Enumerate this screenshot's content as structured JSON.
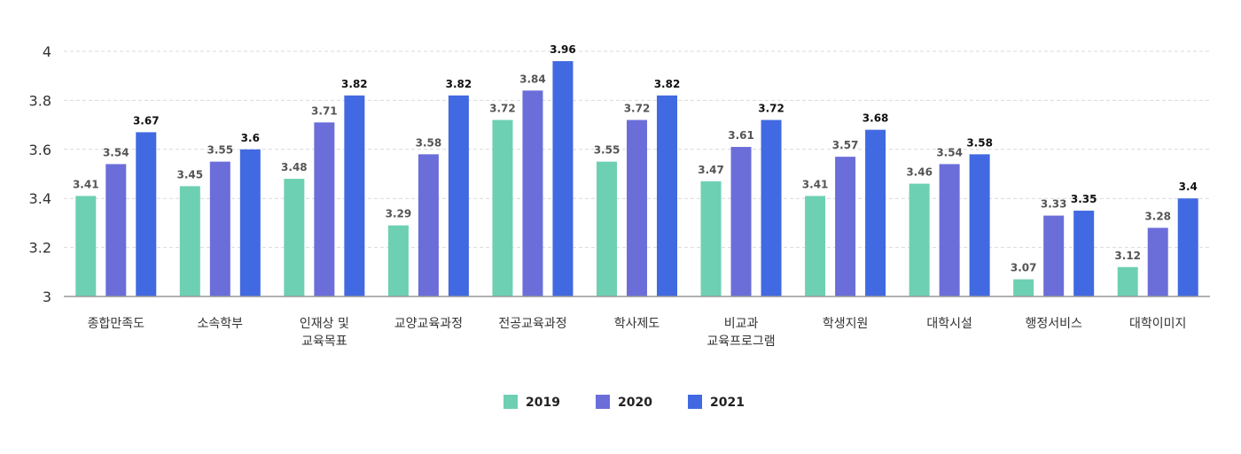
{
  "chart_data": {
    "type": "bar",
    "title": "",
    "xlabel": "",
    "ylabel": "",
    "ylim": [
      3,
      4
    ],
    "yticks": [
      "3",
      "3.2",
      "3.4",
      "3.6",
      "3.8",
      "4"
    ],
    "grid": true,
    "legend_position": "bottom-center",
    "categories": [
      [
        "종합만족도"
      ],
      [
        "소속학부"
      ],
      [
        "인재상 및",
        "교육목표"
      ],
      [
        "교양교육과정"
      ],
      [
        "전공교육과정"
      ],
      [
        "학사제도"
      ],
      [
        "비교과",
        "교육프로그램"
      ],
      [
        "학생지원"
      ],
      [
        "대학시설"
      ],
      [
        "행정서비스"
      ],
      [
        "대학이미지"
      ]
    ],
    "series": [
      {
        "name": "2019",
        "color": "#6dd0b3",
        "values": [
          3.41,
          3.45,
          3.48,
          3.29,
          3.72,
          3.55,
          3.47,
          3.41,
          3.46,
          3.07,
          3.12
        ],
        "labels": [
          "3.41",
          "3.45",
          "3.48",
          "3.29",
          "3.72",
          "3.55",
          "3.47",
          "3.41",
          "3.46",
          "3.07",
          "3.12"
        ]
      },
      {
        "name": "2020",
        "color": "#6b6ed9",
        "values": [
          3.54,
          3.55,
          3.71,
          3.58,
          3.84,
          3.72,
          3.61,
          3.57,
          3.54,
          3.33,
          3.28
        ],
        "labels": [
          "3.54",
          "3.55",
          "3.71",
          "3.58",
          "3.84",
          "3.72",
          "3.61",
          "3.57",
          "3.54",
          "3.33",
          "3.28"
        ]
      },
      {
        "name": "2021",
        "color": "#4169e1",
        "values": [
          3.67,
          3.6,
          3.82,
          3.82,
          3.96,
          3.82,
          3.72,
          3.68,
          3.58,
          3.35,
          3.4
        ],
        "labels": [
          "3.67",
          "3.6",
          "3.82",
          "3.82",
          "3.96",
          "3.82",
          "3.72",
          "3.68",
          "3.58",
          "3.35",
          "3.4"
        ]
      }
    ]
  }
}
